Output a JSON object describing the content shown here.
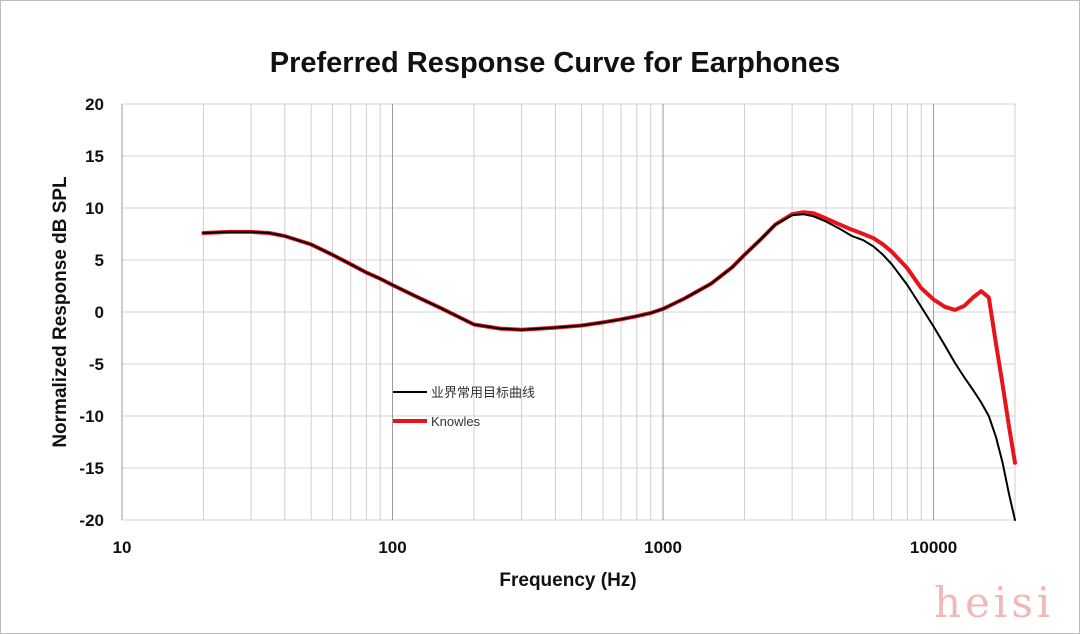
{
  "chart_data": {
    "type": "line",
    "title": "Preferred Response Curve for Earphones",
    "xlabel": "Frequency (Hz)",
    "ylabel": "Normalized Response dB SPL",
    "x_scale": "log",
    "xlim": [
      10,
      20000
    ],
    "ylim": [
      -20,
      20
    ],
    "x_ticks": [
      "10",
      "100",
      "1000",
      "10000"
    ],
    "y_ticks": [
      "20",
      "15",
      "10",
      "5",
      "0",
      "-5",
      "-10",
      "-15",
      "-20"
    ],
    "grid": true,
    "legend_position": "center-left",
    "series": [
      {
        "name": "业界常用目标曲线",
        "color": "#000000",
        "x": [
          20,
          25,
          30,
          35,
          40,
          50,
          60,
          70,
          80,
          90,
          100,
          120,
          150,
          200,
          250,
          300,
          350,
          400,
          500,
          600,
          700,
          800,
          900,
          1000,
          1200,
          1500,
          1800,
          2000,
          2300,
          2600,
          3000,
          3300,
          3600,
          4000,
          4500,
          5000,
          5500,
          6000,
          6500,
          7000,
          8000,
          9000,
          10000,
          11000,
          12000,
          13000,
          14000,
          15000,
          16000,
          17000,
          18000,
          19000,
          20000
        ],
        "values": [
          7.6,
          7.7,
          7.7,
          7.6,
          7.3,
          6.5,
          5.5,
          4.6,
          3.8,
          3.2,
          2.6,
          1.6,
          0.4,
          -1.2,
          -1.6,
          -1.7,
          -1.6,
          -1.5,
          -1.3,
          -1.0,
          -0.7,
          -0.4,
          -0.1,
          0.3,
          1.3,
          2.7,
          4.3,
          5.5,
          7.0,
          8.4,
          9.3,
          9.4,
          9.2,
          8.7,
          8.0,
          7.3,
          6.9,
          6.3,
          5.5,
          4.6,
          2.6,
          0.5,
          -1.4,
          -3.2,
          -4.9,
          -6.3,
          -7.5,
          -8.7,
          -10.0,
          -12.0,
          -14.5,
          -17.5,
          -20.0
        ]
      },
      {
        "name": "Knowles",
        "color": "#e8131b",
        "x": [
          20,
          25,
          30,
          35,
          40,
          50,
          60,
          70,
          80,
          90,
          100,
          120,
          150,
          200,
          250,
          300,
          350,
          400,
          500,
          600,
          700,
          800,
          900,
          1000,
          1200,
          1500,
          1800,
          2000,
          2300,
          2600,
          3000,
          3300,
          3600,
          4000,
          4500,
          5000,
          5500,
          6000,
          6500,
          7000,
          8000,
          9000,
          10000,
          11000,
          12000,
          13000,
          14000,
          15000,
          16000,
          17000,
          18000,
          19000,
          20000
        ],
        "values": [
          7.6,
          7.7,
          7.7,
          7.6,
          7.3,
          6.5,
          5.5,
          4.6,
          3.8,
          3.2,
          2.6,
          1.6,
          0.4,
          -1.2,
          -1.6,
          -1.7,
          -1.6,
          -1.5,
          -1.3,
          -1.0,
          -0.7,
          -0.4,
          -0.1,
          0.3,
          1.3,
          2.7,
          4.3,
          5.5,
          7.0,
          8.4,
          9.4,
          9.6,
          9.5,
          9.0,
          8.4,
          7.9,
          7.5,
          7.1,
          6.5,
          5.8,
          4.2,
          2.3,
          1.2,
          0.5,
          0.2,
          0.6,
          1.4,
          2.0,
          1.4,
          -3.0,
          -7.0,
          -11.0,
          -14.5
        ]
      }
    ]
  },
  "watermark": "heisi"
}
